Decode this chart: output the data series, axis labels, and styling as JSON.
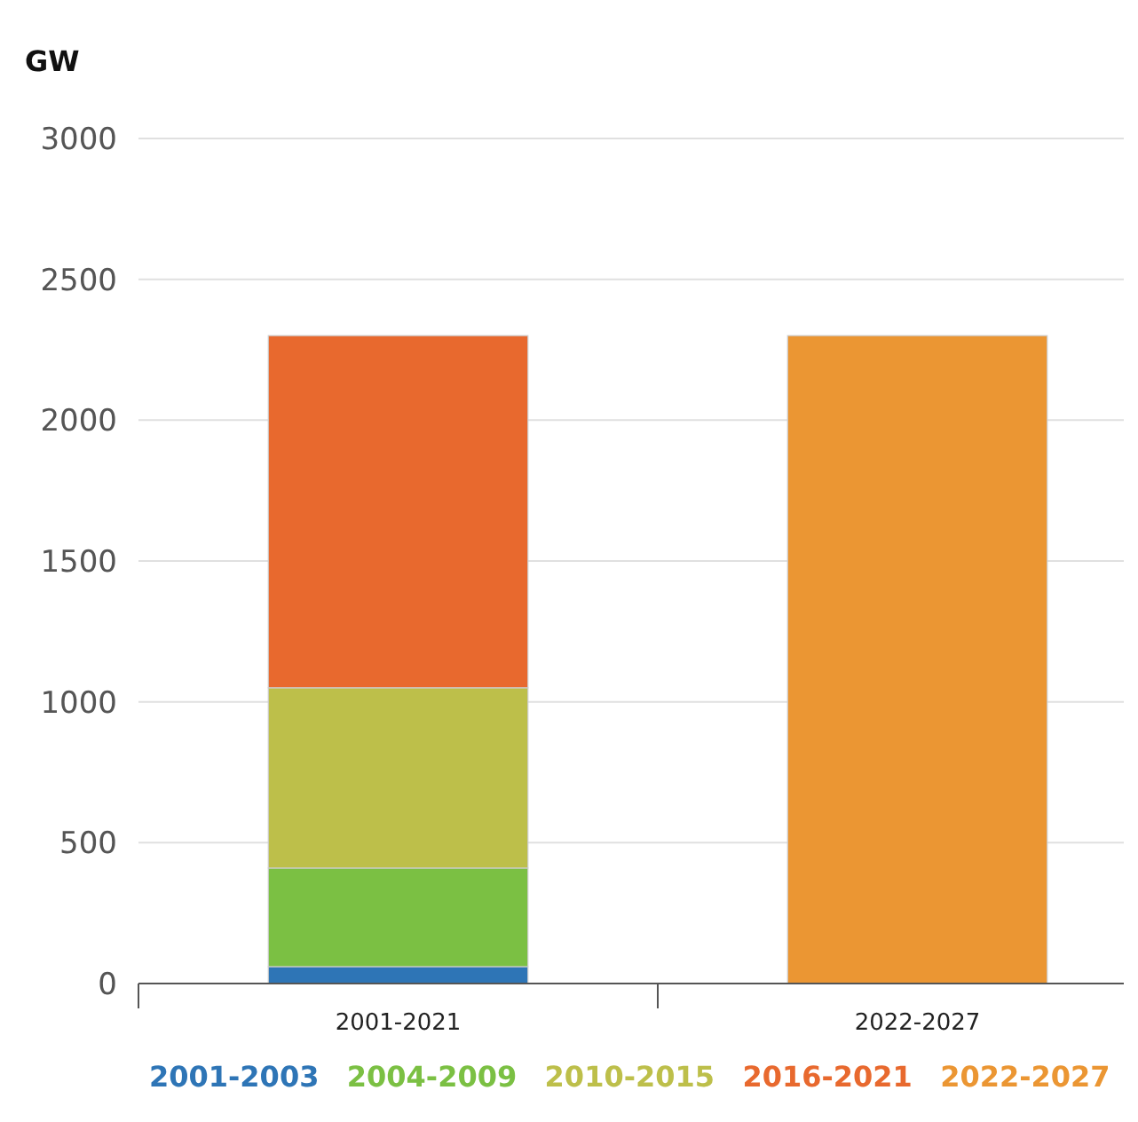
{
  "chart_data": {
    "type": "bar",
    "ylabel": "GW",
    "categories": [
      "2001-2021",
      "2022-2027"
    ],
    "stacked": true,
    "ylim": [
      0,
      3000
    ],
    "yticks": [
      0,
      500,
      1000,
      1500,
      2000,
      2500,
      3000
    ],
    "grid": "y",
    "legend": "bottom",
    "series": [
      {
        "name": "2001-2003",
        "color": "#2e75b6",
        "values": [
          60,
          null
        ]
      },
      {
        "name": "2004-2009",
        "color": "#7bc043",
        "values": [
          350,
          null
        ]
      },
      {
        "name": "2010-2015",
        "color": "#bdbf4a",
        "values": [
          640,
          null
        ]
      },
      {
        "name": "2016-2021",
        "color": "#e8692e",
        "values": [
          1250,
          null
        ]
      },
      {
        "name": "2022-2027",
        "color": "#eb9633",
        "values": [
          null,
          2300
        ]
      }
    ]
  }
}
